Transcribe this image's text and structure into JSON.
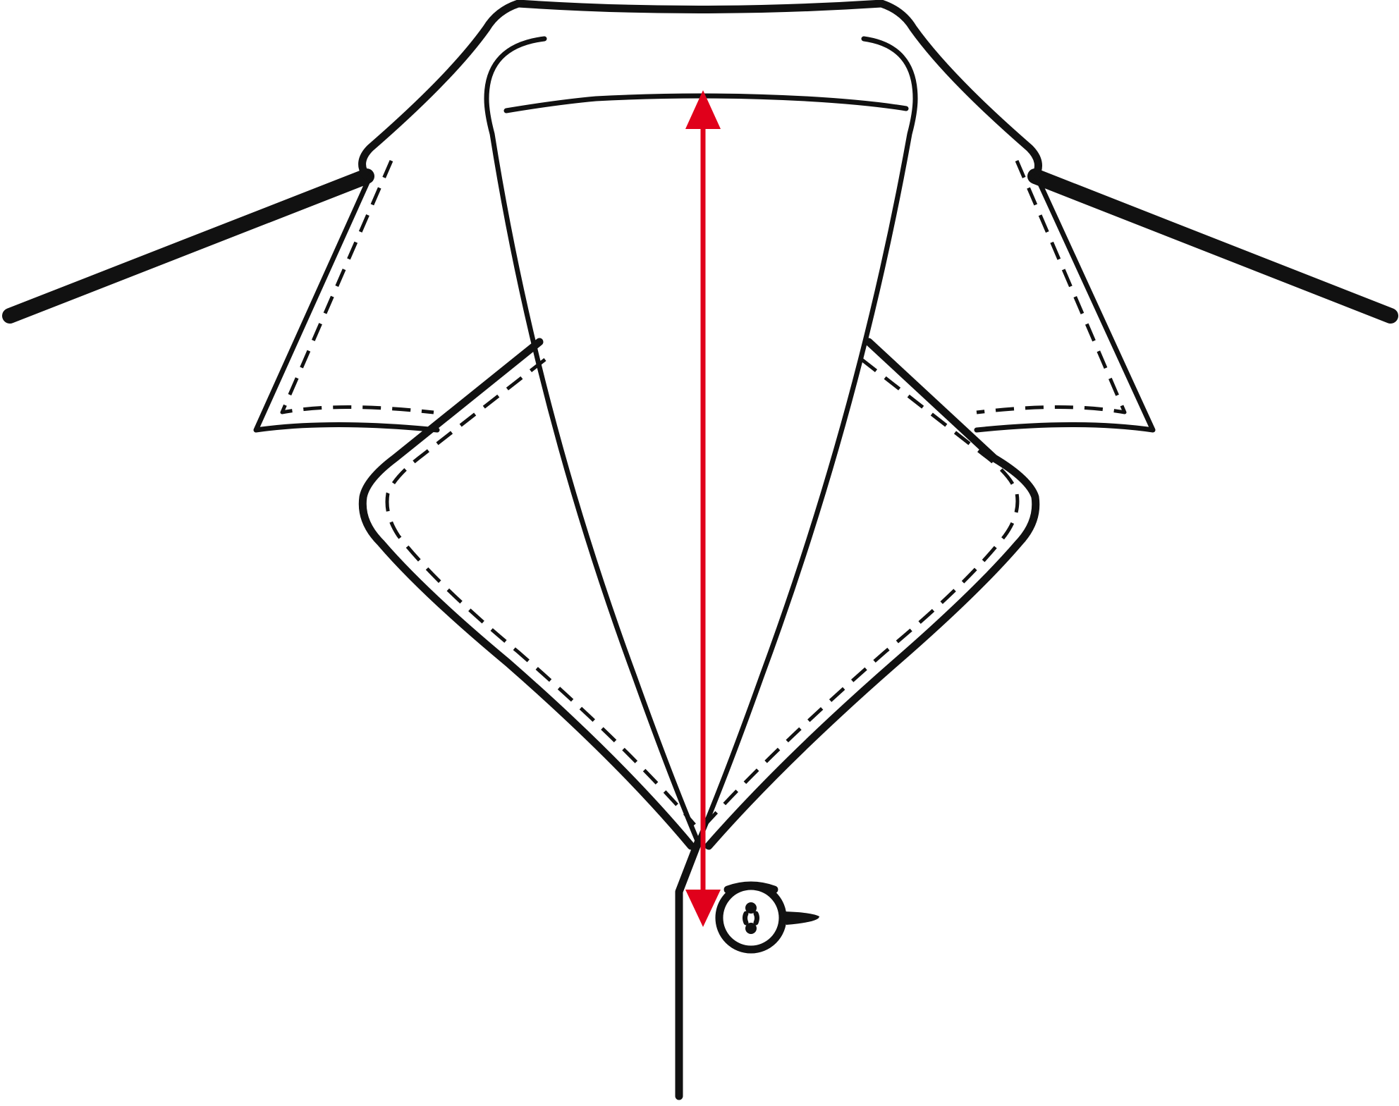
{
  "diagram": {
    "subject": "shirt-collar",
    "colors": {
      "ink": "#111111",
      "measurement": "#e0001b",
      "background": "#ffffff"
    },
    "measurement": {
      "kind": "collar-point-length",
      "direction": "vertical",
      "ends": "arrowheads-both"
    },
    "button": {
      "count": 1,
      "style": "two-hole-thread-shank"
    }
  }
}
